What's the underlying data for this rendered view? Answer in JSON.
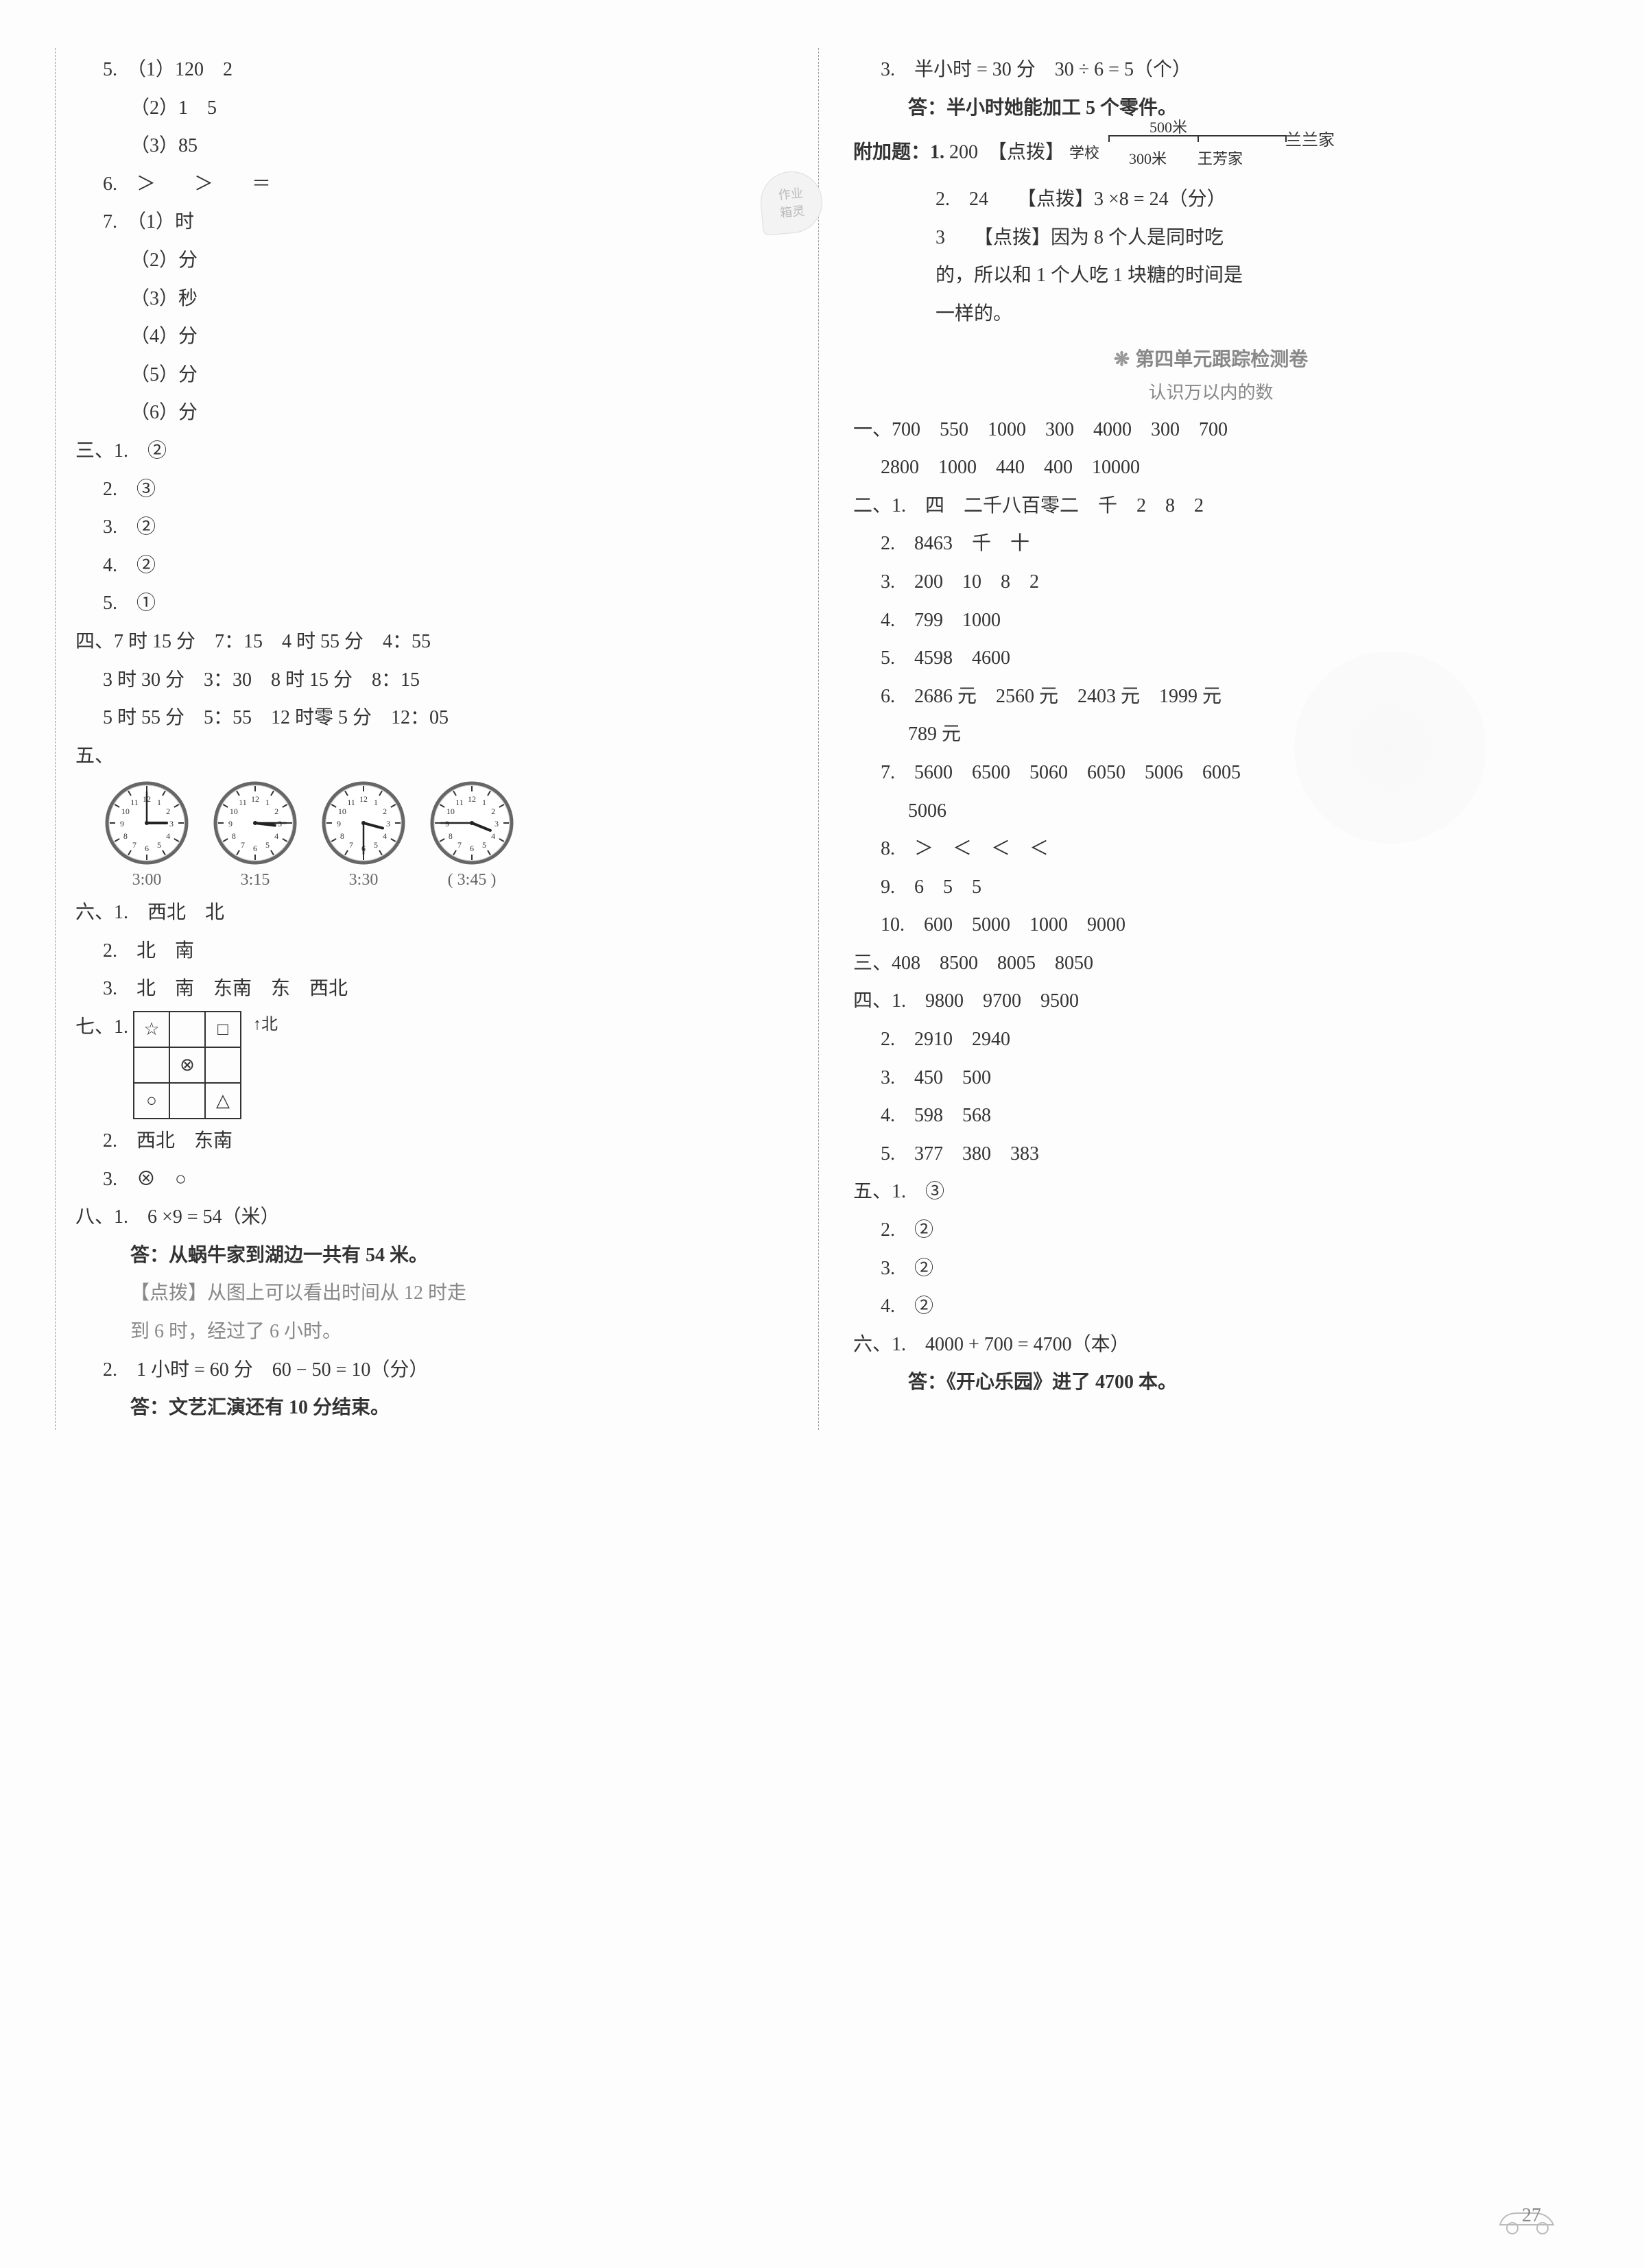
{
  "left": {
    "q5": {
      "a": "（1）120　2",
      "b": "（2）1　5",
      "c": "（3）85"
    },
    "q6": "＞　　＞　　＝",
    "q7": {
      "a": "（1）时",
      "b": "（2）分",
      "c": "（3）秒",
      "d": "（4）分",
      "e": "（5）分",
      "f": "（6）分"
    },
    "stamp": {
      "l1": "作业",
      "l2": "箱灵"
    },
    "s3": {
      "1": "②",
      "2": "③",
      "3": "②",
      "4": "②",
      "5": "①"
    },
    "s3_label": "三、1.",
    "s4": {
      "r1": "7 时 15 分　7：15　4 时 55 分　4：55",
      "r2": "3 时 30 分　3：30　8 时 15 分　8：15",
      "r3": "5 时 55 分　5：55　12 时零 5 分　12：05"
    },
    "s4_label": "四、",
    "s5_label": "五、",
    "clocks": [
      {
        "label": "3:00",
        "h": 90,
        "m": 0
      },
      {
        "label": "3:15",
        "h": 97,
        "m": 90
      },
      {
        "label": "3:30",
        "h": 105,
        "m": 180
      },
      {
        "label": "( 3:45 )",
        "h": 112,
        "m": 270
      }
    ],
    "s6": {
      "1": "西北　北",
      "2": "北　南",
      "3": "北　南　东南　东　西北"
    },
    "s6_label": "六、1.",
    "s7_label": "七、1.",
    "s7_grid": [
      [
        "☆",
        "",
        "□"
      ],
      [
        "",
        "⊗",
        ""
      ],
      [
        "○",
        "",
        "△"
      ]
    ],
    "s7_north": "↑北",
    "s7_2": "西北　东南",
    "s7_3": "⊗　○",
    "s8_label": "八、1.",
    "s8_1a": "6 ×9 = 54（米）",
    "s8_1b": "答：从蜗牛家到湖边一共有 54 米。",
    "s8_1c": "【点拨】从图上可以看出时间从 12 时走",
    "s8_1d": "到 6 时，经过了 6 小时。",
    "s8_2a": "1 小时 = 60 分　60 − 50 = 10（分）",
    "s8_2b": "答：文艺汇演还有 10 分结束。"
  },
  "right": {
    "q3a": "半小时 = 30 分　30 ÷ 6 = 5（个）",
    "q3b": "答：半小时她能加工 5 个零件。",
    "bonus_label": "附加题：1.",
    "bonus_1": "200　【点拨】",
    "bonus_diag": {
      "top": "500米",
      "school": "学校",
      "bot1": "300米",
      "bot2": "王芳家",
      "right": "兰兰家"
    },
    "bonus_2a": "24　　【点拨】3 ×8 = 24（分）",
    "bonus_2b": "3　　【点拨】因为 8 个人是同时吃",
    "bonus_2c": "的，所以和 1 个人吃 1 块糖的时间是",
    "bonus_2d": "一样的。",
    "unit_title": "第四单元跟踪检测卷",
    "unit_sub": "认识万以内的数",
    "u1_label": "一、",
    "u1_r1": "700　550　1000　300　4000　300　700",
    "u1_r2": "2800　1000　440　400　10000",
    "u2_label": "二、1.",
    "u2_1": "四　二千八百零二　千　2　8　2",
    "u2_2": "8463　千　十",
    "u2_3": "200　10　8　2",
    "u2_4": "799　1000",
    "u2_5": "4598　4600",
    "u2_6": "2686 元　2560 元　2403 元　1999 元",
    "u2_6b": "789 元",
    "u2_7": "5600　6500　5060　6050　5006　6005",
    "u2_7b": "5006",
    "u2_8": "＞　＜　＜　＜",
    "u2_9": "6　5　5",
    "u2_10": "600　5000　1000　9000",
    "u3_label": "三、",
    "u3": "408　8500　8005　8050",
    "u4_label": "四、1.",
    "u4_1": "9800　9700　9500",
    "u4_2": "2910　2940",
    "u4_3": "450　500",
    "u4_4": "598　568",
    "u4_5": "377　380　383",
    "u5_label": "五、1.",
    "u5": {
      "1": "③",
      "2": "②",
      "3": "②",
      "4": "②"
    },
    "u6_label": "六、1.",
    "u6_1": "4000 + 700 = 4700（本）",
    "u6_1b": "答：《开心乐园》进了 4700 本。"
  },
  "pagenum": "27",
  "clock_style": {
    "face": "#ffffff",
    "ring": "#666",
    "tick": "#333",
    "hand": "#222",
    "r": 58
  }
}
